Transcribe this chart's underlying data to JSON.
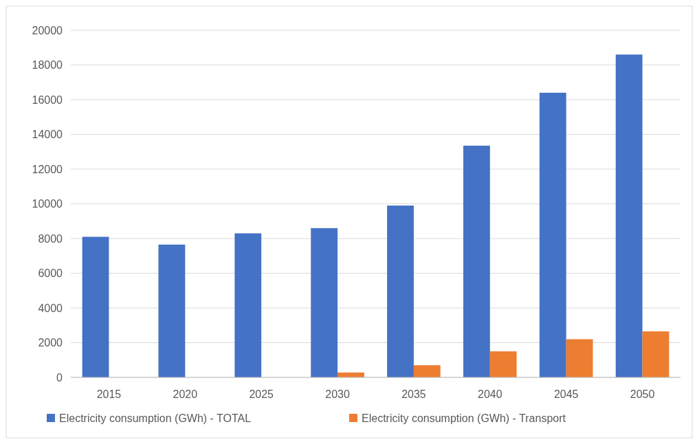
{
  "chart_data": {
    "type": "bar",
    "categories": [
      "2015",
      "2020",
      "2025",
      "2030",
      "2035",
      "2040",
      "2045",
      "2050"
    ],
    "series": [
      {
        "name": "Electricity consumption (GWh) - TOTAL",
        "color": "#4472c4",
        "values": [
          8100,
          7650,
          8300,
          8600,
          9900,
          13350,
          16400,
          18600
        ]
      },
      {
        "name": "Electricity consumption (GWh) - Transport",
        "color": "#ed7d31",
        "values": [
          0,
          0,
          0,
          280,
          700,
          1500,
          2200,
          2650
        ]
      }
    ],
    "ylim": [
      0,
      20000
    ],
    "yticks": [
      0,
      2000,
      4000,
      6000,
      8000,
      10000,
      12000,
      14000,
      16000,
      18000,
      20000
    ],
    "grid": "y",
    "legend": "bottom"
  }
}
